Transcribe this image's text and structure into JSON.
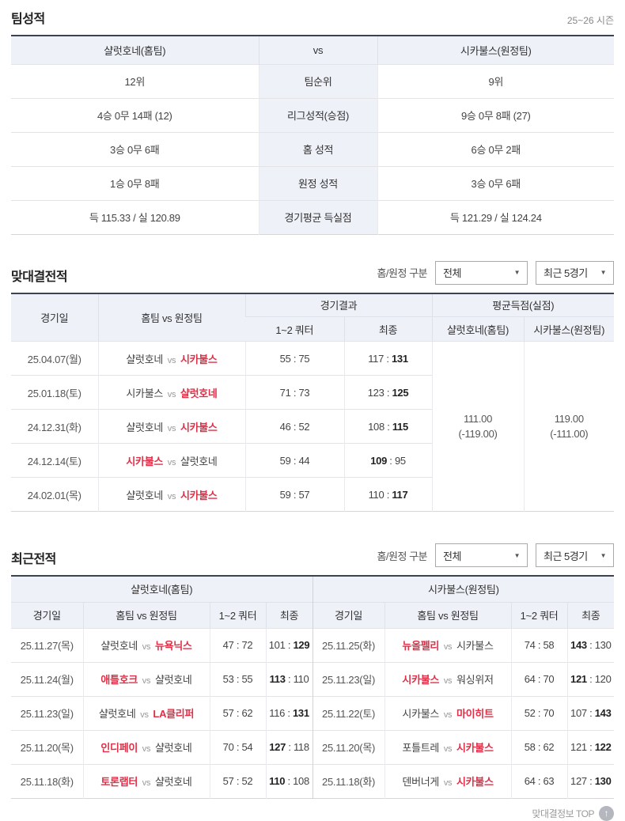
{
  "colors": {
    "accent_red": "#e03048",
    "header_bg": "#eef1f8",
    "dark_border": "#3c4252"
  },
  "season_label": "25~26 시즌",
  "filters": {
    "label": "홈/원정 구분",
    "venue_value": "전체",
    "recent_value": "최근 5경기"
  },
  "team_stats": {
    "title": "팀성적",
    "header": {
      "home": "샬럿호네(홈팀)",
      "vs": "vs",
      "away": "시카불스(원정팀)"
    },
    "rows": [
      {
        "home": "12위",
        "label": "팀순위",
        "away": "9위"
      },
      {
        "home": "4승 0무 14패 (12)",
        "label": "리그성적(승점)",
        "away": "9승 0무 8패 (27)"
      },
      {
        "home": "3승 0무 6패",
        "label": "홈 성적",
        "away": "6승 0무 2패"
      },
      {
        "home": "1승 0무 8패",
        "label": "원정 성적",
        "away": "3승 0무 6패"
      },
      {
        "home": "득 115.33 / 실 120.89",
        "label": "경기평균 득실점",
        "away": "득 121.29 / 실 124.24"
      }
    ]
  },
  "head_to_head": {
    "title": "맞대결전적",
    "headers": {
      "date": "경기일",
      "matchup": "홈팀 vs 원정팀",
      "result_group": "경기결과",
      "quarter": "1~2 쿼터",
      "final": "최종",
      "avg_group": "평균득점(실점)",
      "avg_home": "샬럿호네(홈팀)",
      "avg_away": "시카불스(원정팀)"
    },
    "vs_text": "vs",
    "rows": [
      {
        "date": "25.04.07(월)",
        "home": "샬럿호네",
        "away": "시카불스",
        "quarter": "55 : 75",
        "final_home": "117",
        "final_away": "131",
        "winner": "away"
      },
      {
        "date": "25.01.18(토)",
        "home": "시카불스",
        "away": "샬럿호네",
        "quarter": "71 : 73",
        "final_home": "123",
        "final_away": "125",
        "winner": "away"
      },
      {
        "date": "24.12.31(화)",
        "home": "샬럿호네",
        "away": "시카불스",
        "quarter": "46 : 52",
        "final_home": "108",
        "final_away": "115",
        "winner": "away"
      },
      {
        "date": "24.12.14(토)",
        "home": "시카불스",
        "away": "샬럿호네",
        "quarter": "59 : 44",
        "final_home": "109",
        "final_away": "95",
        "winner": "home"
      },
      {
        "date": "24.02.01(목)",
        "home": "샬럿호네",
        "away": "시카불스",
        "quarter": "59 : 57",
        "final_home": "110",
        "final_away": "117",
        "winner": "away"
      }
    ],
    "avg_home": "111.00",
    "avg_home_sub": "(-119.00)",
    "avg_away": "119.00",
    "avg_away_sub": "(-111.00)"
  },
  "recent": {
    "title": "최근전적",
    "group_home": "샬럿호네(홈팀)",
    "group_away": "시카불스(원정팀)",
    "headers": {
      "date": "경기일",
      "matchup": "홈팀 vs 원정팀",
      "quarter": "1~2 쿼터",
      "final": "최종"
    },
    "vs_text": "vs",
    "home_rows": [
      {
        "date": "25.11.27(목)",
        "home": "샬럿호네",
        "away": "뉴욕닉스",
        "quarter": "47 : 72",
        "final_home": "101",
        "final_away": "129",
        "winner": "away"
      },
      {
        "date": "25.11.24(월)",
        "home": "애틀호크",
        "away": "샬럿호네",
        "quarter": "53 : 55",
        "final_home": "113",
        "final_away": "110",
        "winner": "home"
      },
      {
        "date": "25.11.23(일)",
        "home": "샬럿호네",
        "away": "LA클리퍼",
        "quarter": "57 : 62",
        "final_home": "116",
        "final_away": "131",
        "winner": "away"
      },
      {
        "date": "25.11.20(목)",
        "home": "인디페이",
        "away": "샬럿호네",
        "quarter": "70 : 54",
        "final_home": "127",
        "final_away": "118",
        "winner": "home"
      },
      {
        "date": "25.11.18(화)",
        "home": "토론랩터",
        "away": "샬럿호네",
        "quarter": "57 : 52",
        "final_home": "110",
        "final_away": "108",
        "winner": "home"
      }
    ],
    "away_rows": [
      {
        "date": "25.11.25(화)",
        "home": "뉴올펠리",
        "away": "시카불스",
        "quarter": "74 : 58",
        "final_home": "143",
        "final_away": "130",
        "winner": "home"
      },
      {
        "date": "25.11.23(일)",
        "home": "시카불스",
        "away": "워싱위저",
        "quarter": "64 : 70",
        "final_home": "121",
        "final_away": "120",
        "winner": "home"
      },
      {
        "date": "25.11.22(토)",
        "home": "시카불스",
        "away": "마이히트",
        "quarter": "52 : 70",
        "final_home": "107",
        "final_away": "143",
        "winner": "away"
      },
      {
        "date": "25.11.20(목)",
        "home": "포틀트레",
        "away": "시카불스",
        "quarter": "58 : 62",
        "final_home": "121",
        "final_away": "122",
        "winner": "away"
      },
      {
        "date": "25.11.18(화)",
        "home": "덴버너게",
        "away": "시카불스",
        "quarter": "64 : 63",
        "final_home": "127",
        "final_away": "130",
        "winner": "away"
      }
    ]
  },
  "footer": {
    "top_label": "맞대결정보 TOP",
    "top_icon": "↑"
  },
  "select_arrow": "▼"
}
